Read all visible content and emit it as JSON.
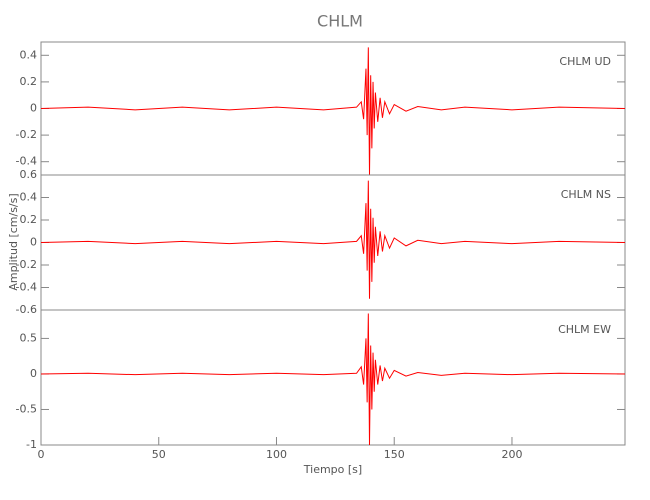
{
  "chart_data": [
    {
      "type": "line",
      "title": "CHLM",
      "annotation": "CHLM   UD",
      "color": "#ff0000",
      "x": [
        0,
        20,
        40,
        60,
        80,
        100,
        120,
        134,
        136,
        137,
        138,
        138.5,
        139,
        139.5,
        140,
        140.5,
        141,
        141.5,
        142,
        143,
        144,
        145,
        146,
        148,
        150,
        155,
        160,
        170,
        180,
        200,
        220,
        248
      ],
      "values": [
        0,
        0.01,
        -0.01,
        0.01,
        -0.01,
        0.01,
        -0.01,
        0.01,
        0.05,
        -0.08,
        0.3,
        -0.2,
        0.46,
        -0.5,
        0.25,
        -0.3,
        0.2,
        -0.15,
        0.12,
        -0.1,
        0.08,
        -0.07,
        0.05,
        -0.04,
        0.03,
        -0.02,
        0.015,
        -0.01,
        0.01,
        -0.01,
        0.01,
        0
      ],
      "xlim": [
        0,
        248
      ],
      "ylim": [
        -0.5,
        0.5
      ],
      "yticks": [
        -0.4,
        -0.2,
        0.0,
        0.2,
        0.4
      ]
    },
    {
      "type": "line",
      "annotation": "CHLM   NS",
      "ylabel": "Amplitud [cm/s/s]",
      "color": "#ff0000",
      "x": [
        0,
        20,
        40,
        60,
        80,
        100,
        120,
        134,
        136,
        137,
        138,
        138.5,
        139,
        139.5,
        140,
        140.5,
        141,
        141.5,
        142,
        143,
        144,
        145,
        146,
        148,
        150,
        155,
        160,
        170,
        180,
        200,
        220,
        248
      ],
      "values": [
        0,
        0.01,
        -0.01,
        0.01,
        -0.01,
        0.01,
        -0.01,
        0.01,
        0.06,
        -0.1,
        0.35,
        -0.25,
        0.55,
        -0.5,
        0.3,
        -0.35,
        0.22,
        -0.18,
        0.14,
        -0.12,
        0.1,
        -0.08,
        0.06,
        -0.05,
        0.04,
        -0.03,
        0.02,
        -0.01,
        0.01,
        -0.01,
        0.01,
        0
      ],
      "xlim": [
        0,
        248
      ],
      "ylim": [
        -0.6,
        0.6
      ],
      "yticks": [
        -0.6,
        -0.4,
        -0.2,
        0.0,
        0.2,
        0.4,
        0.6
      ]
    },
    {
      "type": "line",
      "annotation": "CHLM   EW",
      "xlabel": "Tiempo [s]",
      "color": "#ff0000",
      "x": [
        0,
        20,
        40,
        60,
        80,
        100,
        120,
        134,
        136,
        137,
        138,
        138.5,
        139,
        139.5,
        140,
        140.5,
        141,
        141.5,
        142,
        143,
        144,
        145,
        146,
        148,
        150,
        155,
        160,
        170,
        180,
        200,
        220,
        248
      ],
      "values": [
        0,
        0.01,
        -0.01,
        0.01,
        -0.01,
        0.01,
        -0.01,
        0.01,
        0.1,
        -0.15,
        0.5,
        -0.4,
        0.85,
        -1.0,
        0.4,
        -0.5,
        0.3,
        -0.25,
        0.2,
        -0.15,
        0.12,
        -0.1,
        0.08,
        -0.06,
        0.05,
        -0.03,
        0.02,
        -0.02,
        0.01,
        -0.01,
        0.01,
        0
      ],
      "xlim": [
        0,
        248
      ],
      "ylim": [
        -1.0,
        0.9
      ],
      "yticks": [
        -1.0,
        -0.5,
        0.0,
        0.5
      ],
      "xticks": [
        0,
        50,
        100,
        150,
        200
      ]
    }
  ]
}
